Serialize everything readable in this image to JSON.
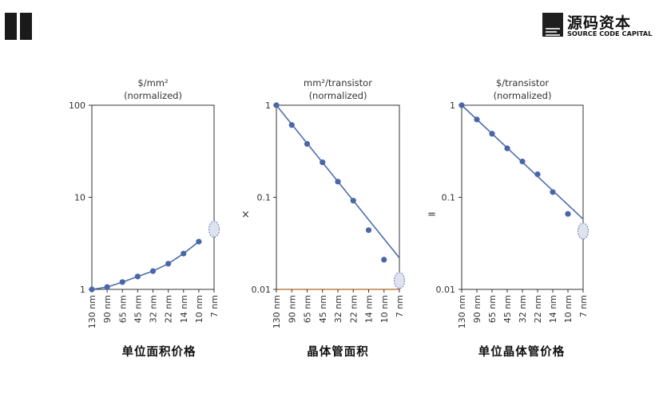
{
  "logo": {
    "cn": "源码资本",
    "en": "SOURCE CODE CAPITAL"
  },
  "operators": {
    "multiply": "×",
    "equals": "="
  },
  "colors": {
    "line": "#4a6db0",
    "point": "#4a66a8",
    "axis": "#333333",
    "highlight_fill": "#dfe3ee",
    "highlight_stroke": "#7f93c4"
  },
  "chart_data": [
    {
      "type": "line",
      "title_line1": "$/mm²",
      "title_line2": "(normalized)",
      "caption": "单位面积价格",
      "y_scale": "log",
      "ylim": [
        1,
        100
      ],
      "y_ticks": [
        100,
        10,
        1
      ],
      "y_tick_labels": [
        "100",
        "10",
        "1"
      ],
      "categories": [
        "130 nm",
        "90 nm",
        "65 nm",
        "45 nm",
        "32 nm",
        "22 nm",
        "14 nm",
        "10 nm",
        "7 nm"
      ],
      "series": [
        {
          "values": [
            1.0,
            1.06,
            1.2,
            1.38,
            1.58,
            1.9,
            2.45,
            3.3,
            null
          ]
        }
      ],
      "highlight": {
        "category": "7 nm",
        "value": 4.5
      }
    },
    {
      "type": "line",
      "title_line1": "mm²/transistor",
      "title_line2": "(normalized)",
      "caption": "晶体管面积",
      "y_scale": "log",
      "ylim": [
        0.01,
        1
      ],
      "y_ticks": [
        1,
        0.1,
        0.01
      ],
      "y_tick_labels": [
        "1",
        "0.1",
        "0.01"
      ],
      "categories": [
        "130 nm",
        "90 nm",
        "65 nm",
        "45 nm",
        "32 nm",
        "22 nm",
        "14 nm",
        "10 nm",
        "7 nm"
      ],
      "series": [
        {
          "values": [
            1.0,
            0.61,
            0.38,
            0.24,
            0.148,
            0.092,
            0.044,
            0.021,
            null
          ]
        }
      ],
      "trend_line": {
        "from": [
          0,
          1.0
        ],
        "to": [
          8,
          0.022
        ]
      },
      "highlight": {
        "category": "7 nm",
        "value": 0.0125
      }
    },
    {
      "type": "line",
      "title_line1": "$/transistor",
      "title_line2": "(normalized)",
      "caption": "单位晶体管价格",
      "y_scale": "log",
      "ylim": [
        0.01,
        1
      ],
      "y_ticks": [
        1,
        0.1,
        0.01
      ],
      "y_tick_labels": [
        "1",
        "0.1",
        "0.01"
      ],
      "categories": [
        "130 nm",
        "90 nm",
        "65 nm",
        "45 nm",
        "32 nm",
        "22 nm",
        "14 nm",
        "10 nm",
        "7 nm"
      ],
      "series": [
        {
          "values": [
            1.0,
            0.7,
            0.49,
            0.34,
            0.245,
            0.178,
            0.114,
            0.066,
            null
          ]
        }
      ],
      "trend_line": {
        "from": [
          0,
          1.0
        ],
        "to": [
          8,
          0.058
        ]
      },
      "highlight": {
        "category": "7 nm",
        "value": 0.043
      }
    }
  ]
}
